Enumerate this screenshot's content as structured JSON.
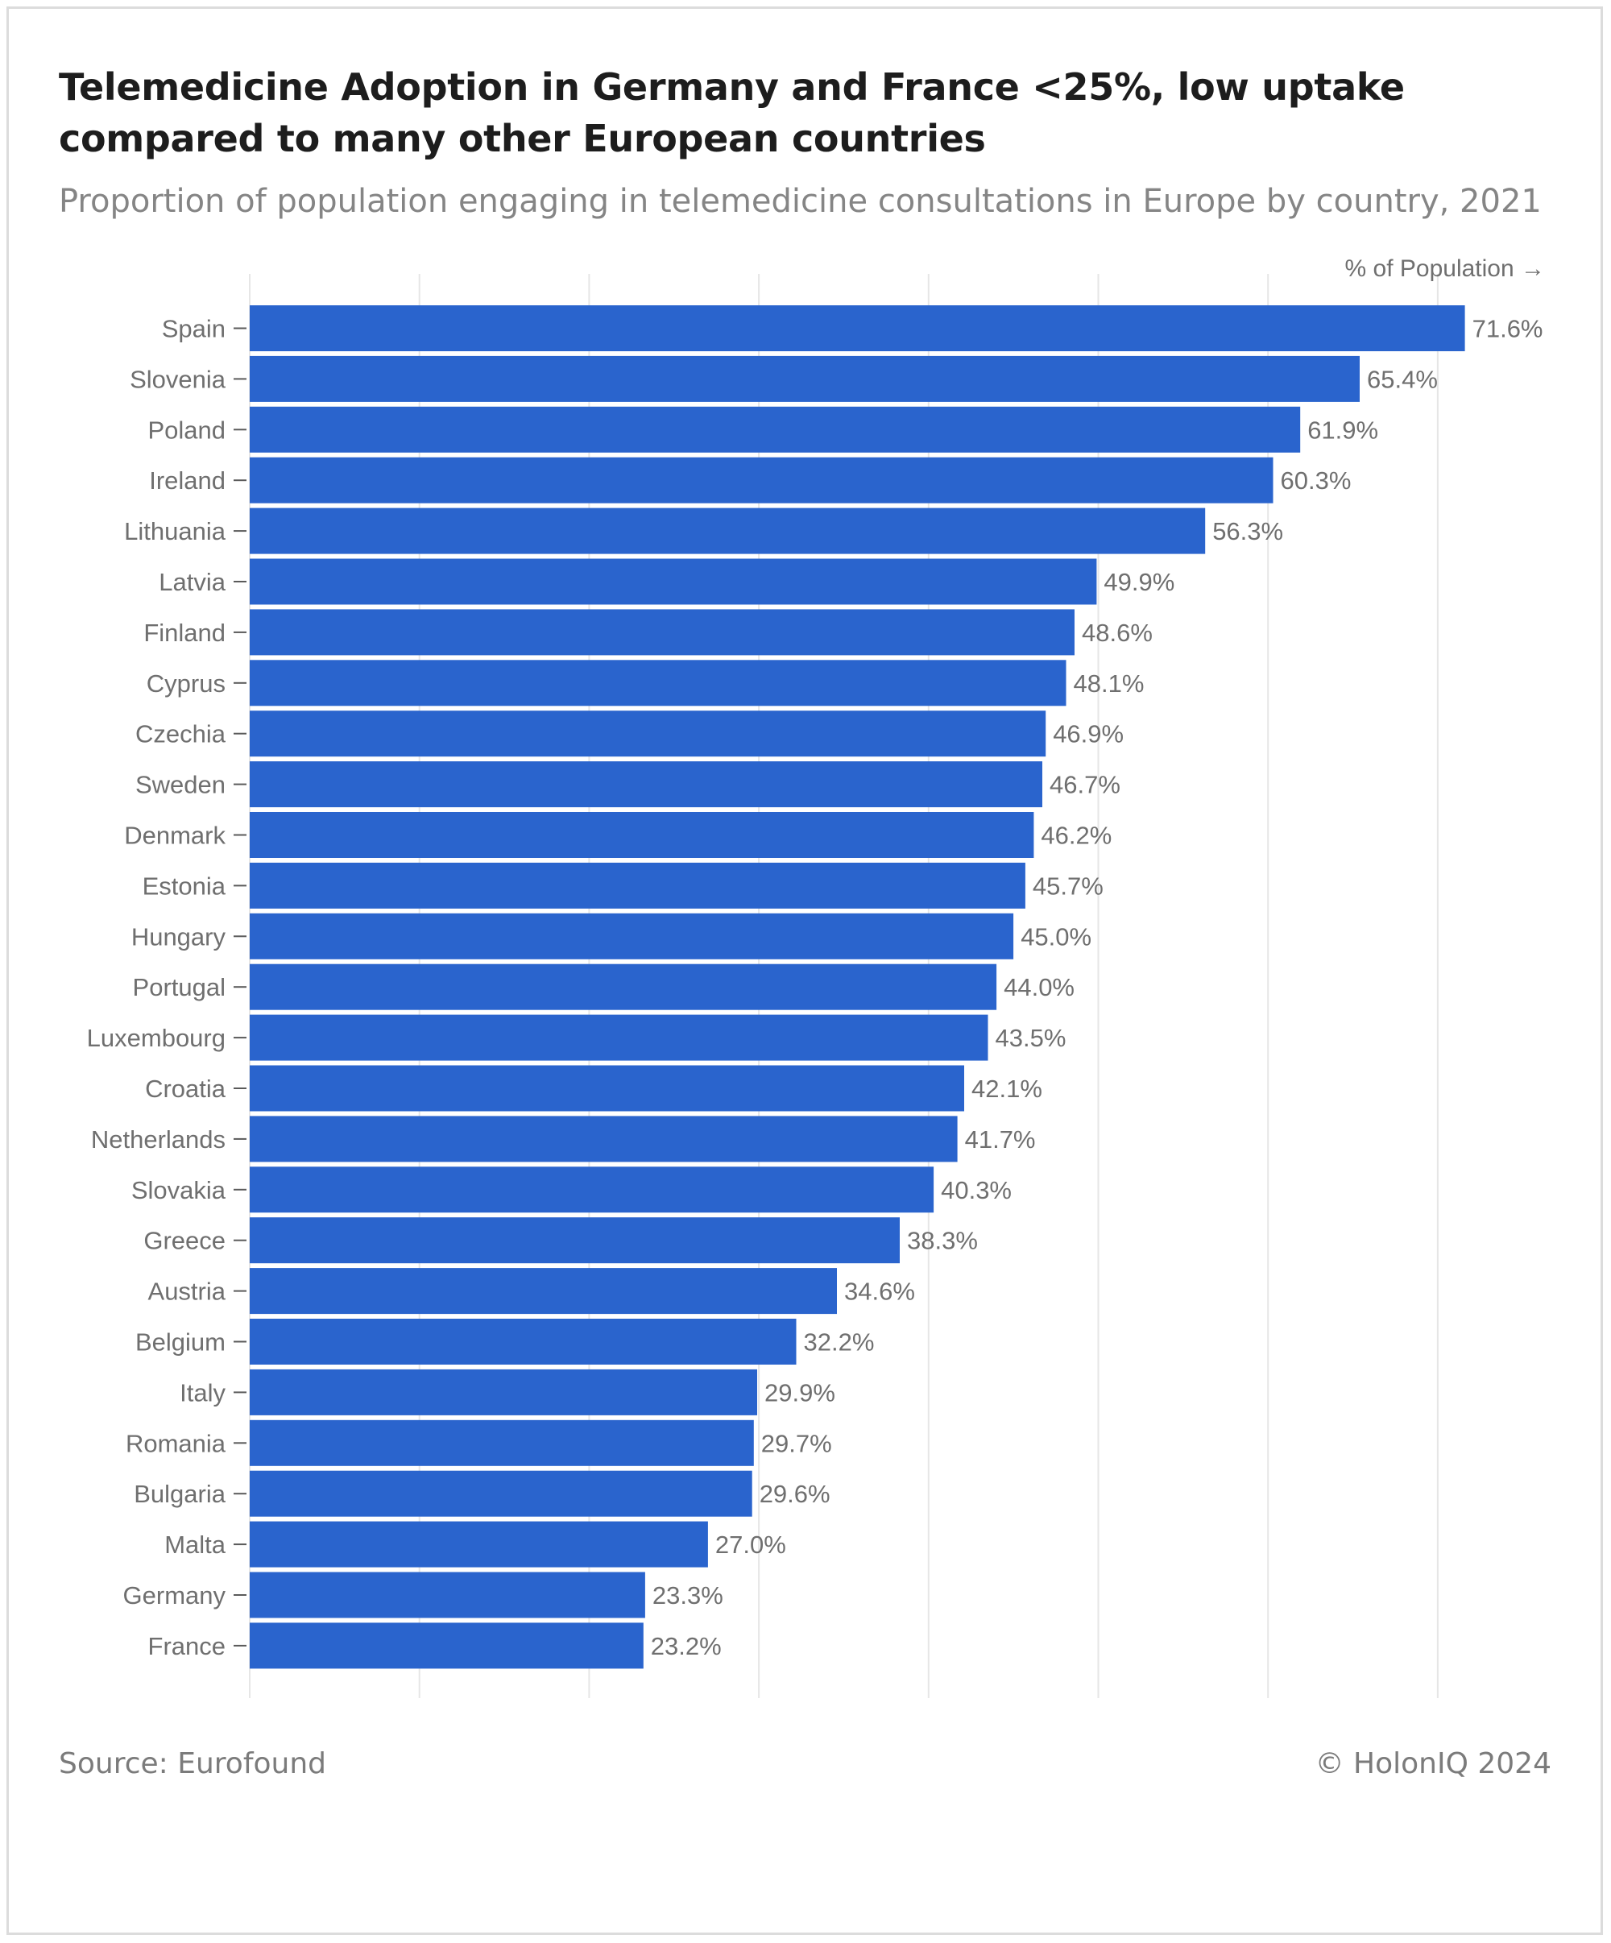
{
  "header": {
    "title": "Telemedicine Adoption in Germany and France <25%, low uptake compared to many other European countries",
    "subtitle": "Proportion of population engaging in telemedicine consultations in Europe by country, 2021"
  },
  "footer": {
    "source": "Source: Eurofound",
    "credit": "© HolonIQ 2024"
  },
  "colors": {
    "bar": "#2a64cd",
    "grid": "#e6e6e6",
    "axis_text": "#6f6f6f",
    "tick": "#5a5a5a"
  },
  "chart_data": {
    "type": "bar",
    "orientation": "horizontal",
    "title": "Telemedicine Adoption in Germany and France <25%, low uptake compared to many other European countries",
    "subtitle": "Proportion of population engaging in telemedicine consultations in Europe by country, 2021",
    "xlabel": "% of Population →",
    "ylabel": "",
    "xlim": [
      0,
      75
    ],
    "grid": true,
    "value_suffix": "%",
    "categories": [
      "Spain",
      "Slovenia",
      "Poland",
      "Ireland",
      "Lithuania",
      "Latvia",
      "Finland",
      "Cyprus",
      "Czechia",
      "Sweden",
      "Denmark",
      "Estonia",
      "Hungary",
      "Portugal",
      "Luxembourg",
      "Croatia",
      "Netherlands",
      "Slovakia",
      "Greece",
      "Austria",
      "Belgium",
      "Italy",
      "Romania",
      "Bulgaria",
      "Malta",
      "Germany",
      "France"
    ],
    "values": [
      71.6,
      65.4,
      61.9,
      60.3,
      56.3,
      49.9,
      48.6,
      48.1,
      46.9,
      46.7,
      46.2,
      45.7,
      45.0,
      44.0,
      43.5,
      42.1,
      41.7,
      40.3,
      38.3,
      34.6,
      32.2,
      29.9,
      29.7,
      29.6,
      27.0,
      23.3,
      23.2
    ]
  }
}
